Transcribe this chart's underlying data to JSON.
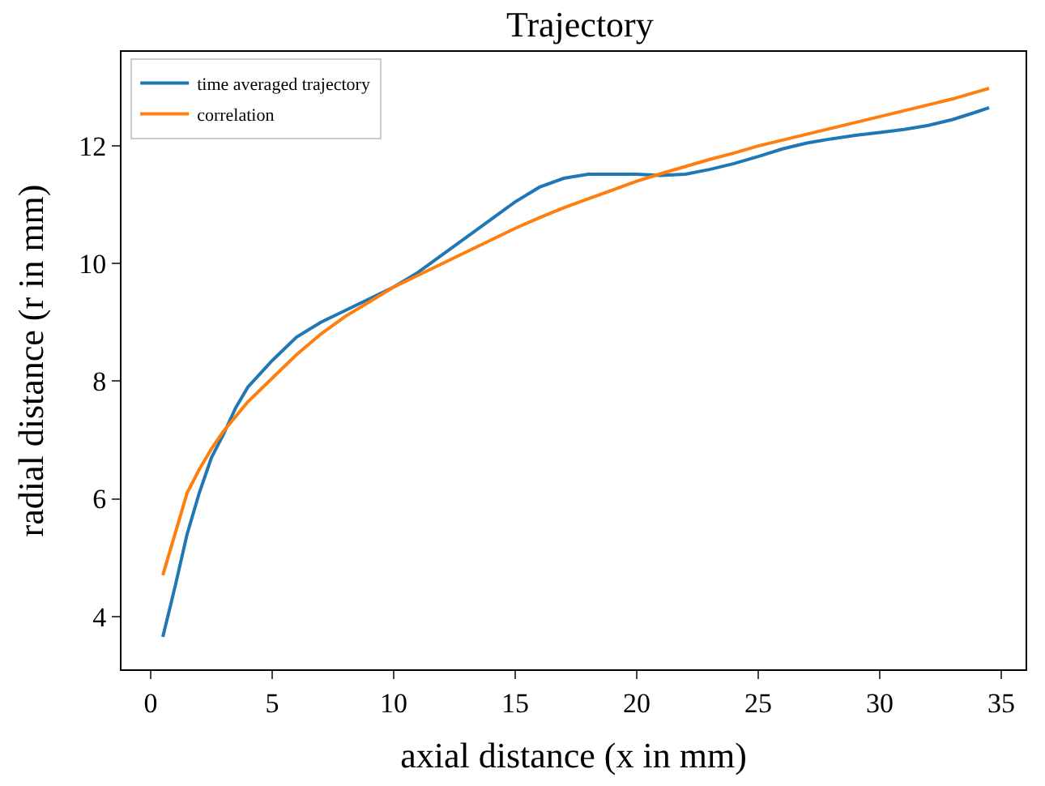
{
  "chart_data": {
    "type": "line",
    "title": "Trajectory",
    "xlabel": "axial distance (x in mm)",
    "ylabel": "radial distance (r in mm)",
    "x": [
      0.5,
      1,
      1.5,
      2,
      2.5,
      3,
      3.5,
      4,
      5,
      6,
      7,
      8,
      9,
      10,
      11,
      12,
      13,
      14,
      15,
      16,
      17,
      18,
      19,
      20,
      21,
      22,
      23,
      24,
      25,
      26,
      27,
      28,
      29,
      30,
      31,
      32,
      33,
      34,
      34.5
    ],
    "series": [
      {
        "name": "time averaged trajectory",
        "color": "#1f77b4",
        "values": [
          3.65,
          4.5,
          5.4,
          6.1,
          6.7,
          7.1,
          7.55,
          7.9,
          8.35,
          8.75,
          9.0,
          9.2,
          9.4,
          9.6,
          9.85,
          10.15,
          10.45,
          10.75,
          11.05,
          11.3,
          11.45,
          11.52,
          11.52,
          11.52,
          11.5,
          11.52,
          11.6,
          11.7,
          11.82,
          11.95,
          12.05,
          12.12,
          12.18,
          12.23,
          12.28,
          12.35,
          12.45,
          12.58,
          12.65
        ]
      },
      {
        "name": "correlation",
        "color": "#ff7f0e",
        "values": [
          4.7,
          5.4,
          6.1,
          6.5,
          6.85,
          7.15,
          7.4,
          7.65,
          8.05,
          8.45,
          8.8,
          9.1,
          9.35,
          9.6,
          9.8,
          10.0,
          10.2,
          10.4,
          10.6,
          10.78,
          10.95,
          11.1,
          11.25,
          11.4,
          11.53,
          11.65,
          11.77,
          11.88,
          12.0,
          12.1,
          12.2,
          12.3,
          12.4,
          12.5,
          12.6,
          12.7,
          12.8,
          12.92,
          12.98
        ]
      }
    ],
    "xlim": [
      -1.2,
      36
    ],
    "xticks": [
      0,
      5,
      10,
      15,
      20,
      25,
      30,
      35
    ],
    "ylim": [
      3.1,
      13.6
    ],
    "yticks": [
      4,
      6,
      8,
      10,
      12
    ],
    "grid": false,
    "legend": "top left",
    "marker": "none",
    "line_style": "solid"
  }
}
